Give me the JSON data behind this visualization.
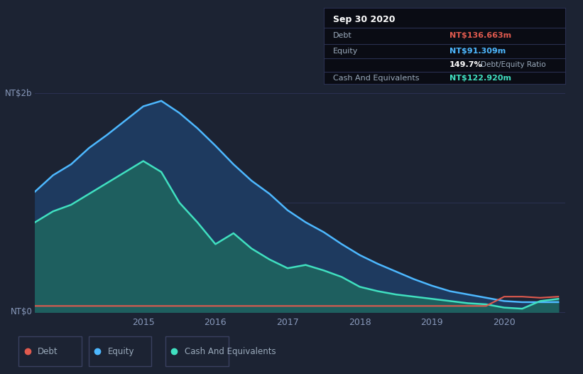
{
  "bg_color": "#1c2333",
  "plot_bg_color": "#1c2333",
  "title_box": {
    "date": "Sep 30 2020",
    "debt_label": "Debt",
    "debt_value": "NT$136.663m",
    "equity_label": "Equity",
    "equity_value": "NT$91.309m",
    "ratio": "149.7%",
    "ratio_label": "Debt/Equity Ratio",
    "cash_label": "Cash And Equivalents",
    "cash_value": "NT$122.920m"
  },
  "ylabel_top": "NT$2b",
  "ylabel_bottom": "NT$0",
  "x_ticks": [
    "2015",
    "2016",
    "2017",
    "2018",
    "2019",
    "2020"
  ],
  "debt_color": "#e05a4e",
  "equity_color": "#4db8ff",
  "cash_color": "#40e0c0",
  "equity_fill_color": "#1e3a5f",
  "cash_fill_color": "#1e5f5f",
  "grid_color": "#2a3050",
  "legend_labels": [
    "Debt",
    "Equity",
    "Cash And Equivalents"
  ],
  "time": [
    2013.5,
    2013.75,
    2014.0,
    2014.25,
    2014.5,
    2014.75,
    2015.0,
    2015.25,
    2015.5,
    2015.75,
    2016.0,
    2016.25,
    2016.5,
    2016.75,
    2017.0,
    2017.25,
    2017.5,
    2017.75,
    2018.0,
    2018.25,
    2018.5,
    2018.75,
    2019.0,
    2019.25,
    2019.5,
    2019.75,
    2020.0,
    2020.25,
    2020.5,
    2020.75
  ],
  "equity": [
    1.1,
    1.25,
    1.35,
    1.5,
    1.62,
    1.75,
    1.88,
    1.93,
    1.82,
    1.68,
    1.52,
    1.35,
    1.2,
    1.08,
    0.93,
    0.82,
    0.73,
    0.62,
    0.52,
    0.44,
    0.37,
    0.3,
    0.24,
    0.19,
    0.16,
    0.13,
    0.1,
    0.09,
    0.09,
    0.09
  ],
  "cash": [
    0.82,
    0.92,
    0.98,
    1.08,
    1.18,
    1.28,
    1.38,
    1.28,
    1.0,
    0.82,
    0.62,
    0.72,
    0.58,
    0.48,
    0.4,
    0.43,
    0.38,
    0.32,
    0.23,
    0.19,
    0.16,
    0.14,
    0.12,
    0.1,
    0.08,
    0.07,
    0.04,
    0.03,
    0.1,
    0.12
  ],
  "debt": [
    0.055,
    0.055,
    0.055,
    0.055,
    0.055,
    0.055,
    0.055,
    0.055,
    0.055,
    0.055,
    0.055,
    0.055,
    0.055,
    0.055,
    0.055,
    0.055,
    0.055,
    0.055,
    0.055,
    0.055,
    0.055,
    0.055,
    0.055,
    0.055,
    0.055,
    0.055,
    0.14,
    0.14,
    0.13,
    0.14
  ]
}
